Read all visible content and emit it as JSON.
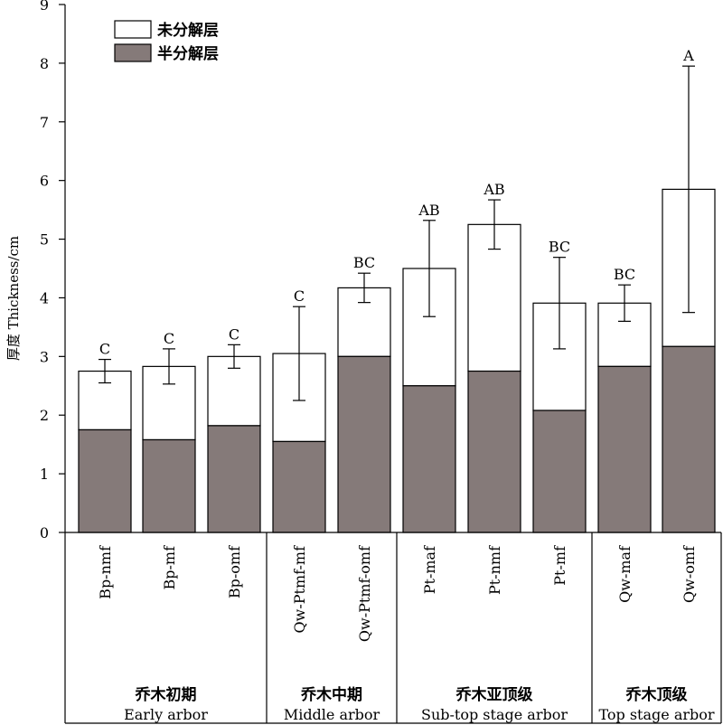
{
  "chart_data": {
    "type": "bar",
    "stacked": true,
    "ylabel": "厚度 Thickness/cm",
    "ylim": [
      0,
      9
    ],
    "yticks": [
      "0",
      "1",
      "2",
      "3",
      "4",
      "5",
      "6",
      "7",
      "8",
      "9"
    ],
    "categories": [
      "Bp-nmf",
      "Bp-mf",
      "Bp-omf",
      "Qw-Ptmf-mf",
      "Qw-Ptmf-omf",
      "Pt-maf",
      "Pt-nmf",
      "Pt-mf",
      "Qw-maf",
      "Qw-omf"
    ],
    "series": [
      {
        "name": "半分解层",
        "color": "#857a79",
        "values": [
          1.75,
          1.58,
          1.82,
          1.55,
          3.0,
          2.5,
          2.75,
          2.08,
          2.83,
          3.17
        ]
      },
      {
        "name": "未分解层",
        "color": "#ffffff",
        "values": [
          1.0,
          1.25,
          1.18,
          1.5,
          1.17,
          2.0,
          2.5,
          1.83,
          1.08,
          2.68
        ]
      }
    ],
    "totals": [
      2.75,
      2.83,
      3.0,
      3.05,
      4.17,
      4.5,
      5.25,
      3.91,
      3.91,
      5.85
    ],
    "error": [
      0.2,
      0.3,
      0.2,
      0.8,
      0.25,
      0.82,
      0.42,
      0.78,
      0.31,
      2.1
    ],
    "significance": [
      "C",
      "C",
      "C",
      "C",
      "BC",
      "AB",
      "AB",
      "BC",
      "BC",
      "A"
    ],
    "legend": {
      "position": "top-left",
      "entries": [
        "未分解层",
        "半分解层"
      ]
    },
    "groups": [
      {
        "zh": "乔木初期",
        "en": "Early arbor",
        "count": 3
      },
      {
        "zh": "乔木中期",
        "en": "Middle arbor",
        "count": 2
      },
      {
        "zh": "乔木亚顶级",
        "en": "Sub-top stage arbor",
        "count": 3
      },
      {
        "zh": "乔木顶级",
        "en": "Top stage arbor",
        "count": 2
      }
    ],
    "grid": false
  }
}
